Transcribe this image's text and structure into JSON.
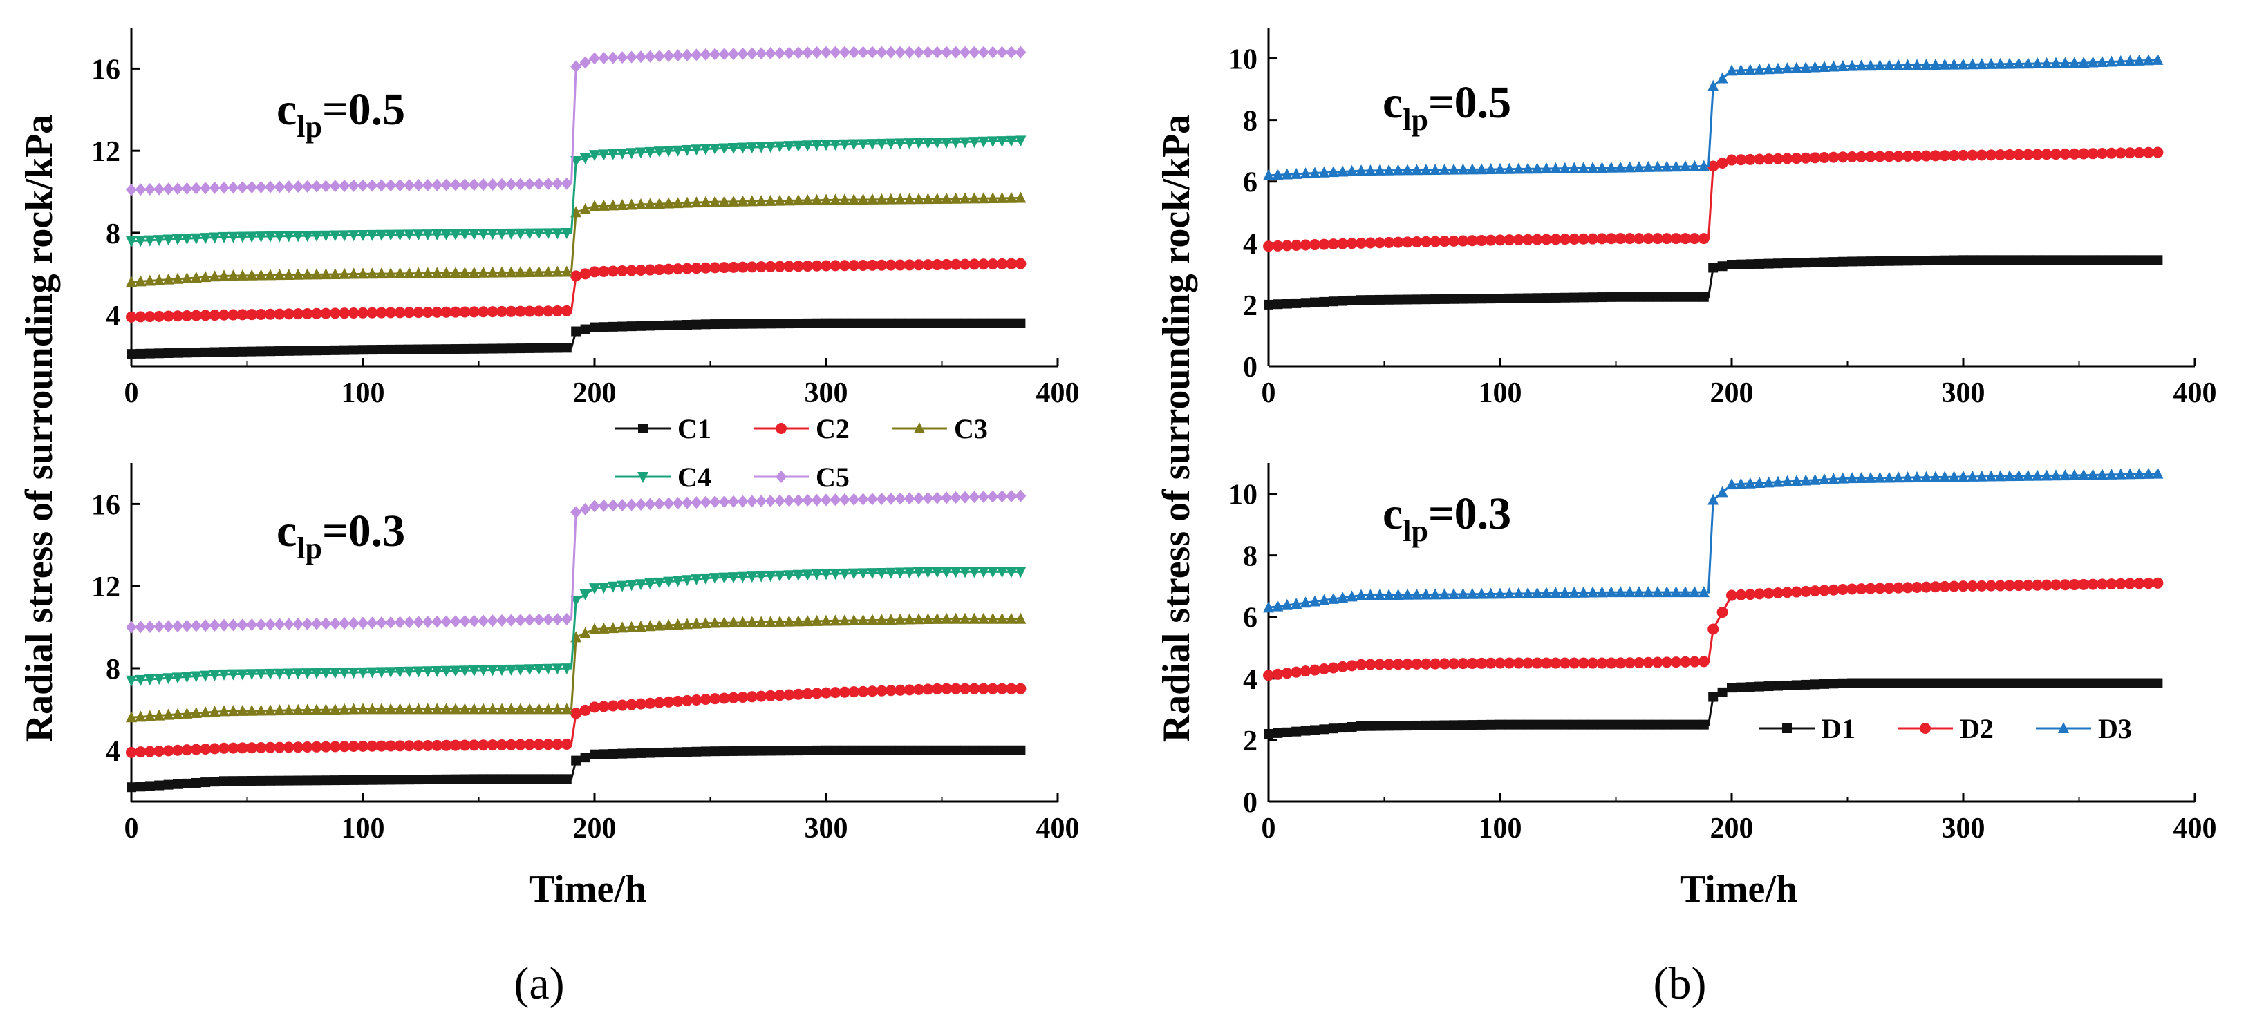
{
  "figure": {
    "captions": [
      "(a)",
      "(b)"
    ],
    "ylabel": "Radial stress of surrounding rock/kPa",
    "xlabel": "Time/h"
  },
  "chart_data": [
    {
      "id": "a-top",
      "type": "line",
      "annotation": {
        "main": "c",
        "sub": "lp",
        "rest": "=0.5"
      },
      "xlim": [
        0,
        400
      ],
      "ylim": [
        1.5,
        18
      ],
      "xticks": [
        0,
        100,
        200,
        300,
        400
      ],
      "yticks": [
        4,
        8,
        12,
        16
      ],
      "x": [
        0,
        40,
        100,
        150,
        190,
        192,
        200,
        250,
        300,
        350,
        385
      ],
      "series": [
        {
          "name": "C1",
          "color": "#111111",
          "marker": "square",
          "values": [
            2.1,
            2.2,
            2.3,
            2.35,
            2.4,
            3.2,
            3.4,
            3.55,
            3.6,
            3.6,
            3.6
          ]
        },
        {
          "name": "C2",
          "color": "#e8202a",
          "marker": "circle",
          "values": [
            3.9,
            4.0,
            4.1,
            4.15,
            4.2,
            5.9,
            6.1,
            6.3,
            6.4,
            6.45,
            6.5
          ]
        },
        {
          "name": "C3",
          "color": "#7f7a1a",
          "marker": "triangle",
          "values": [
            5.6,
            5.9,
            6.0,
            6.05,
            6.1,
            9.0,
            9.3,
            9.5,
            9.6,
            9.65,
            9.7
          ]
        },
        {
          "name": "C4",
          "color": "#1aa37a",
          "marker": "triangle-down",
          "values": [
            7.6,
            7.8,
            7.9,
            7.95,
            8.0,
            11.5,
            11.8,
            12.1,
            12.3,
            12.4,
            12.5
          ]
        },
        {
          "name": "C5",
          "color": "#c08ee0",
          "marker": "diamond",
          "values": [
            10.1,
            10.2,
            10.3,
            10.35,
            10.4,
            16.1,
            16.5,
            16.7,
            16.8,
            16.8,
            16.8
          ]
        }
      ]
    },
    {
      "id": "a-bottom",
      "type": "line",
      "annotation": {
        "main": "c",
        "sub": "lp",
        "rest": "=0.3"
      },
      "xlim": [
        0,
        400
      ],
      "ylim": [
        1.5,
        18
      ],
      "xticks": [
        0,
        100,
        200,
        300,
        400
      ],
      "yticks": [
        4,
        8,
        12,
        16
      ],
      "x": [
        0,
        40,
        100,
        150,
        190,
        192,
        200,
        250,
        300,
        350,
        385
      ],
      "series": [
        {
          "name": "C1",
          "color": "#111111",
          "marker": "square",
          "values": [
            2.2,
            2.5,
            2.55,
            2.6,
            2.6,
            3.5,
            3.8,
            3.95,
            4.0,
            4.0,
            4.0
          ]
        },
        {
          "name": "C2",
          "color": "#e8202a",
          "marker": "circle",
          "values": [
            3.9,
            4.1,
            4.2,
            4.25,
            4.3,
            5.8,
            6.1,
            6.5,
            6.8,
            7.0,
            7.0
          ]
        },
        {
          "name": "C3",
          "color": "#7f7a1a",
          "marker": "triangle",
          "values": [
            5.6,
            5.9,
            6.0,
            6.0,
            6.0,
            9.5,
            9.9,
            10.2,
            10.3,
            10.4,
            10.4
          ]
        },
        {
          "name": "C4",
          "color": "#1aa37a",
          "marker": "triangle-down",
          "values": [
            7.4,
            7.7,
            7.8,
            7.9,
            8.0,
            11.3,
            11.9,
            12.4,
            12.6,
            12.7,
            12.7
          ]
        },
        {
          "name": "C5",
          "color": "#c08ee0",
          "marker": "diamond",
          "values": [
            10.0,
            10.1,
            10.2,
            10.3,
            10.4,
            15.6,
            15.9,
            16.1,
            16.2,
            16.3,
            16.4
          ]
        }
      ]
    },
    {
      "id": "b-top",
      "type": "line",
      "annotation": {
        "main": "c",
        "sub": "lp",
        "rest": "=0.5"
      },
      "xlim": [
        0,
        400
      ],
      "ylim": [
        0,
        11
      ],
      "xticks": [
        0,
        100,
        200,
        300,
        400
      ],
      "yticks": [
        0,
        2,
        4,
        6,
        8,
        10
      ],
      "x": [
        0,
        40,
        100,
        150,
        190,
        192,
        200,
        250,
        300,
        350,
        385
      ],
      "series": [
        {
          "name": "D1",
          "color": "#111111",
          "marker": "square",
          "values": [
            2.0,
            2.15,
            2.2,
            2.25,
            2.25,
            3.2,
            3.3,
            3.4,
            3.45,
            3.45,
            3.45
          ]
        },
        {
          "name": "D2",
          "color": "#e8202a",
          "marker": "circle",
          "values": [
            3.9,
            4.0,
            4.1,
            4.15,
            4.15,
            6.5,
            6.7,
            6.8,
            6.85,
            6.9,
            6.95
          ]
        },
        {
          "name": "D3",
          "color": "#1f77c4",
          "marker": "triangle",
          "values": [
            6.2,
            6.35,
            6.4,
            6.45,
            6.5,
            9.1,
            9.6,
            9.75,
            9.8,
            9.85,
            9.95
          ]
        }
      ]
    },
    {
      "id": "b-bottom",
      "type": "line",
      "annotation": {
        "main": "c",
        "sub": "lp",
        "rest": "=0.3"
      },
      "xlim": [
        0,
        400
      ],
      "ylim": [
        0,
        11
      ],
      "xticks": [
        0,
        100,
        200,
        300,
        400
      ],
      "yticks": [
        0,
        2,
        4,
        6,
        8,
        10
      ],
      "x": [
        0,
        40,
        100,
        150,
        190,
        192,
        200,
        250,
        300,
        350,
        385
      ],
      "series": [
        {
          "name": "D1",
          "color": "#111111",
          "marker": "square",
          "values": [
            2.2,
            2.45,
            2.5,
            2.5,
            2.5,
            3.4,
            3.7,
            3.85,
            3.85,
            3.85,
            3.85
          ]
        },
        {
          "name": "D2",
          "color": "#e8202a",
          "marker": "circle",
          "values": [
            4.1,
            4.45,
            4.5,
            4.5,
            4.55,
            5.6,
            6.7,
            6.9,
            7.0,
            7.05,
            7.1
          ]
        },
        {
          "name": "D3",
          "color": "#1f77c4",
          "marker": "triangle",
          "values": [
            6.3,
            6.7,
            6.75,
            6.8,
            6.8,
            9.8,
            10.3,
            10.5,
            10.55,
            10.6,
            10.65
          ]
        }
      ]
    }
  ],
  "legends": {
    "a": {
      "rows": [
        [
          "C1",
          "C2",
          "C3"
        ],
        [
          "C4",
          "C5"
        ]
      ]
    },
    "b": {
      "rows": [
        [
          "D1",
          "D2",
          "D3"
        ]
      ]
    }
  }
}
